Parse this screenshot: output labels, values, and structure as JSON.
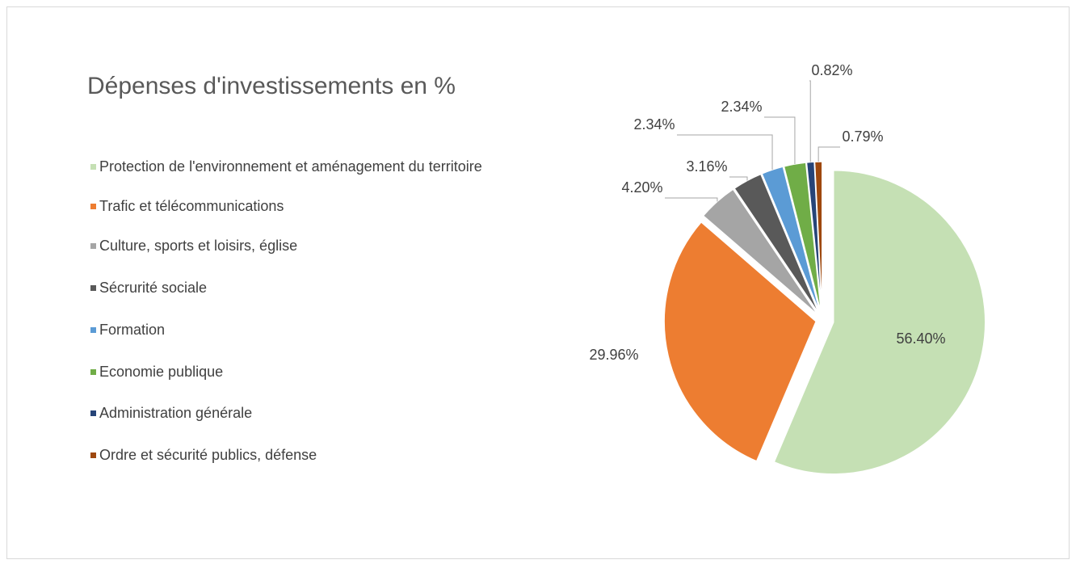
{
  "chart_data": {
    "type": "pie",
    "title": "Dépenses d'investissements en %",
    "categories": [
      "Protection de l'environnement et aménagement du territoire",
      "Trafic et télécommunications",
      "Culture, sports et loisirs, église",
      "Sécrurité sociale",
      "Formation",
      "Economie publique",
      "Administration générale",
      "Ordre et sécurité publics, défense"
    ],
    "values": [
      56.4,
      29.96,
      4.2,
      3.16,
      2.34,
      2.34,
      0.82,
      0.79
    ],
    "value_labels": [
      "56.40%",
      "29.96%",
      "4.20%",
      "3.16%",
      "2.34%",
      "2.34%",
      "0.82%",
      "0.79%"
    ],
    "colors": [
      "#c5e0b4",
      "#ed7d31",
      "#a5a5a5",
      "#595959",
      "#5b9bd5",
      "#70ad47",
      "#264478",
      "#9e480e"
    ],
    "legend": "left"
  }
}
